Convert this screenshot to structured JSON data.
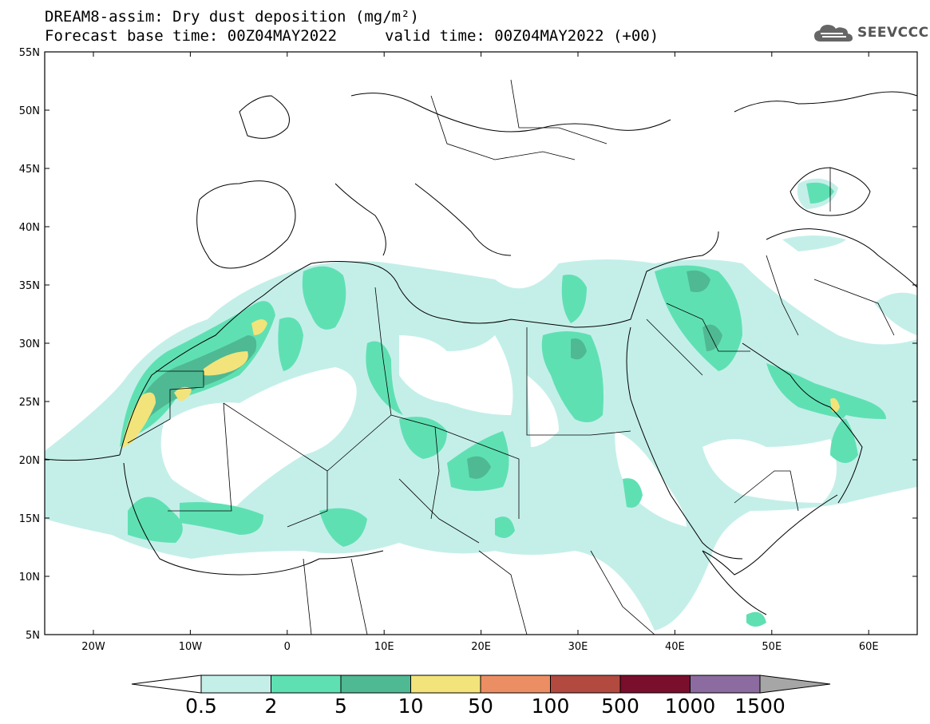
{
  "header": {
    "title": "DREAM8-assim: Dry dust deposition (mg/m²)",
    "base_time": "Forecast base time: 00Z04MAY2022",
    "valid_time": "valid time: 00Z04MAY2022 (+00)",
    "logo_text": "SEEVCCC",
    "logo_icon": "cloud-icon"
  },
  "axes": {
    "lat_labels": [
      "55N",
      "50N",
      "45N",
      "40N",
      "35N",
      "30N",
      "25N",
      "20N",
      "15N",
      "10N",
      "5N"
    ],
    "lon_labels": [
      "20W",
      "10W",
      "0",
      "10E",
      "20E",
      "30E",
      "40E",
      "50E",
      "60E"
    ]
  },
  "colorbar": {
    "labels": [
      "0.5",
      "2",
      "5",
      "10",
      "50",
      "100",
      "500",
      "1000",
      "1500"
    ],
    "colors": [
      "#c4efe9",
      "#5fe0b3",
      "#4fb994",
      "#f2e47a",
      "#ec8e64",
      "#b24a3f",
      "#7a0e2d",
      "#8b6ba0",
      "#a6a6a6"
    ]
  },
  "palette": {
    "light": "#c4efe9",
    "mid": "#5fe0b3",
    "dark": "#4fb994",
    "yellow": "#f2e47a"
  }
}
